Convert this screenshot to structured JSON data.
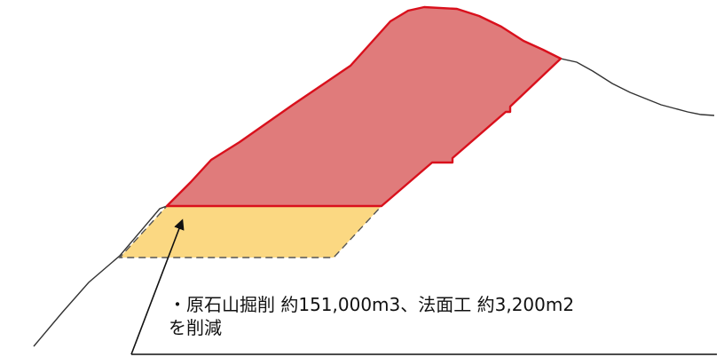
{
  "annotation": {
    "line1": "・原石山掘削 約151,000m3、法面工 約3,200m2",
    "line2": "を削減"
  },
  "colors": {
    "background": "#ffffff",
    "excavation_fill": "#e07b7b",
    "excavation_stroke": "#d9101c",
    "reduction_fill": "#fbd882",
    "reduction_dash": "#555555",
    "terrain_line": "#333333",
    "leader_line": "#111111"
  }
}
